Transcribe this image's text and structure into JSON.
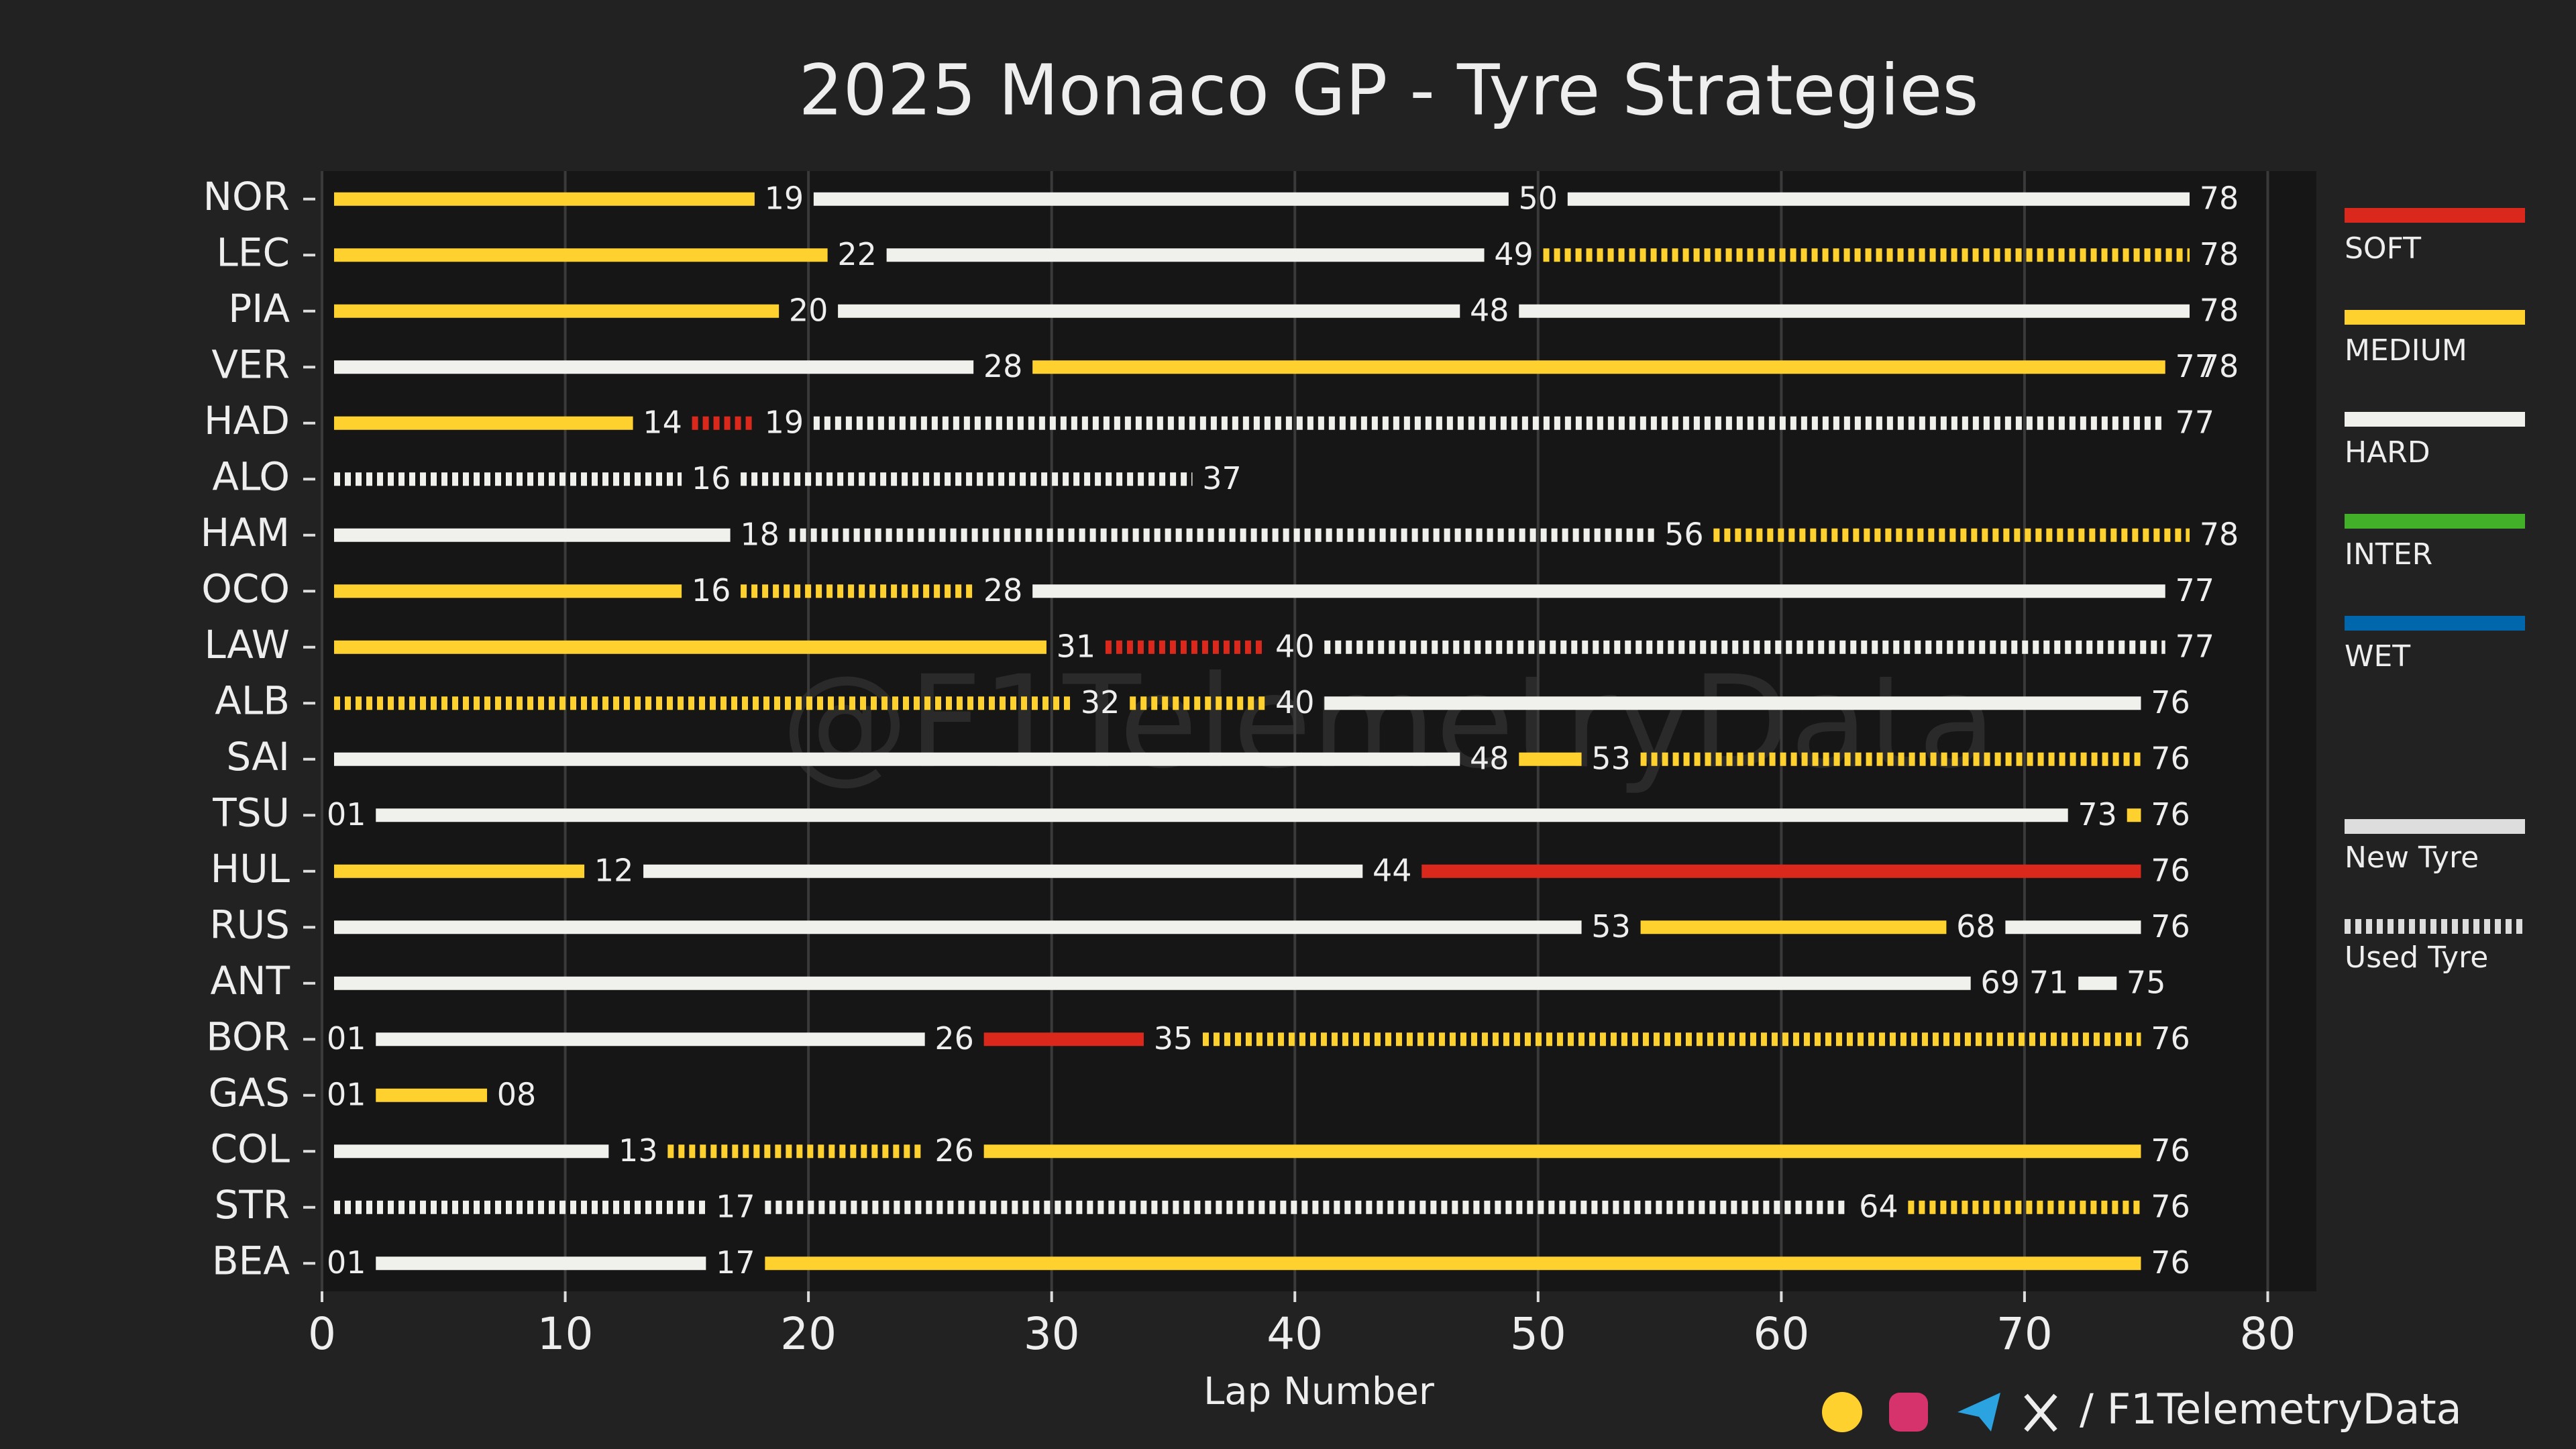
{
  "chart_data": {
    "type": "gantt",
    "title": "2025 Monaco GP - Tyre Strategies",
    "xlabel": "Lap Number",
    "xlim": [
      0,
      82
    ],
    "xticks": [
      0,
      10,
      20,
      30,
      40,
      50,
      60,
      70,
      80
    ],
    "grid": true,
    "watermark": "@F1TelemetryData",
    "footer": "/ F1TelemetryData",
    "compounds": [
      {
        "name": "SOFT",
        "color": "#da291c"
      },
      {
        "name": "MEDIUM",
        "color": "#ffd12e"
      },
      {
        "name": "HARD",
        "color": "#f0f0ec"
      },
      {
        "name": "INTER",
        "color": "#43b02a"
      },
      {
        "name": "WET",
        "color": "#0067ad"
      }
    ],
    "tyre_age": {
      "new": "New Tyre",
      "used": "Used Tyre"
    },
    "drivers": [
      {
        "name": "NOR",
        "stints": [
          {
            "compound": "MEDIUM",
            "new": true,
            "end": 19
          },
          {
            "compound": "HARD",
            "new": true,
            "end": 50
          },
          {
            "compound": "HARD",
            "new": true,
            "end": 78
          }
        ]
      },
      {
        "name": "LEC",
        "stints": [
          {
            "compound": "MEDIUM",
            "new": true,
            "end": 22
          },
          {
            "compound": "HARD",
            "new": true,
            "end": 49
          },
          {
            "compound": "MEDIUM",
            "new": false,
            "end": 78
          }
        ]
      },
      {
        "name": "PIA",
        "stints": [
          {
            "compound": "MEDIUM",
            "new": true,
            "end": 20
          },
          {
            "compound": "HARD",
            "new": true,
            "end": 48
          },
          {
            "compound": "HARD",
            "new": true,
            "end": 78
          }
        ]
      },
      {
        "name": "VER",
        "stints": [
          {
            "compound": "HARD",
            "new": true,
            "end": 28
          },
          {
            "compound": "MEDIUM",
            "new": true,
            "end": 77
          },
          {
            "compound": "HARD",
            "new": true,
            "end": 78
          }
        ]
      },
      {
        "name": "HAD",
        "stints": [
          {
            "compound": "MEDIUM",
            "new": true,
            "end": 14
          },
          {
            "compound": "SOFT",
            "new": false,
            "end": 19
          },
          {
            "compound": "HARD",
            "new": false,
            "end": 77
          }
        ]
      },
      {
        "name": "ALO",
        "stints": [
          {
            "compound": "HARD",
            "new": false,
            "end": 16
          },
          {
            "compound": "HARD",
            "new": false,
            "end": 37
          }
        ]
      },
      {
        "name": "HAM",
        "stints": [
          {
            "compound": "HARD",
            "new": true,
            "end": 18
          },
          {
            "compound": "HARD",
            "new": false,
            "end": 56
          },
          {
            "compound": "MEDIUM",
            "new": false,
            "end": 78
          }
        ]
      },
      {
        "name": "OCO",
        "stints": [
          {
            "compound": "MEDIUM",
            "new": true,
            "end": 16
          },
          {
            "compound": "MEDIUM",
            "new": false,
            "end": 28
          },
          {
            "compound": "HARD",
            "new": true,
            "end": 77
          }
        ]
      },
      {
        "name": "LAW",
        "stints": [
          {
            "compound": "MEDIUM",
            "new": true,
            "end": 31
          },
          {
            "compound": "SOFT",
            "new": false,
            "end": 40
          },
          {
            "compound": "HARD",
            "new": false,
            "end": 77
          }
        ]
      },
      {
        "name": "ALB",
        "stints": [
          {
            "compound": "MEDIUM",
            "new": false,
            "end": 32
          },
          {
            "compound": "MEDIUM",
            "new": false,
            "end": 40
          },
          {
            "compound": "HARD",
            "new": true,
            "end": 76
          }
        ]
      },
      {
        "name": "SAI",
        "stints": [
          {
            "compound": "HARD",
            "new": true,
            "end": 48
          },
          {
            "compound": "MEDIUM",
            "new": true,
            "end": 53
          },
          {
            "compound": "MEDIUM",
            "new": false,
            "end": 76
          }
        ]
      },
      {
        "name": "TSU",
        "stints": [
          {
            "compound": "HARD",
            "new": true,
            "end": {
              "value": 1,
              "label": "01"
            }
          },
          {
            "compound": "HARD",
            "new": true,
            "end": 73
          },
          {
            "compound": "MEDIUM",
            "new": true,
            "end": 76
          }
        ]
      },
      {
        "name": "HUL",
        "stints": [
          {
            "compound": "MEDIUM",
            "new": true,
            "end": 12
          },
          {
            "compound": "HARD",
            "new": true,
            "end": 44
          },
          {
            "compound": "SOFT",
            "new": true,
            "end": 76
          }
        ]
      },
      {
        "name": "RUS",
        "stints": [
          {
            "compound": "HARD",
            "new": true,
            "end": 53
          },
          {
            "compound": "MEDIUM",
            "new": true,
            "end": 68
          },
          {
            "compound": "HARD",
            "new": true,
            "end": 76
          }
        ]
      },
      {
        "name": "ANT",
        "stints": [
          {
            "compound": "HARD",
            "new": true,
            "end": 69
          },
          {
            "compound": "HARD",
            "new": true,
            "end": 71
          },
          {
            "compound": "HARD",
            "new": true,
            "end": 75
          }
        ]
      },
      {
        "name": "BOR",
        "stints": [
          {
            "compound": "HARD",
            "new": true,
            "end": {
              "value": 1,
              "label": "01"
            }
          },
          {
            "compound": "HARD",
            "new": true,
            "end": 26
          },
          {
            "compound": "SOFT",
            "new": true,
            "end": 35
          },
          {
            "compound": "MEDIUM",
            "new": false,
            "end": 76
          }
        ]
      },
      {
        "name": "GAS",
        "stints": [
          {
            "compound": "MEDIUM",
            "new": true,
            "end": {
              "value": 1,
              "label": "01"
            }
          },
          {
            "compound": "MEDIUM",
            "new": true,
            "end": {
              "value": 8,
              "label": "08"
            }
          }
        ]
      },
      {
        "name": "COL",
        "stints": [
          {
            "compound": "HARD",
            "new": true,
            "end": 13
          },
          {
            "compound": "MEDIUM",
            "new": false,
            "end": 26
          },
          {
            "compound": "MEDIUM",
            "new": true,
            "end": 76
          }
        ]
      },
      {
        "name": "STR",
        "stints": [
          {
            "compound": "HARD",
            "new": false,
            "end": 17
          },
          {
            "compound": "HARD",
            "new": false,
            "end": 64
          },
          {
            "compound": "MEDIUM",
            "new": false,
            "end": 76
          }
        ]
      },
      {
        "name": "BEA",
        "stints": [
          {
            "compound": "HARD",
            "new": true,
            "end": {
              "value": 1,
              "label": "01"
            }
          },
          {
            "compound": "HARD",
            "new": true,
            "end": 17
          },
          {
            "compound": "MEDIUM",
            "new": true,
            "end": 76
          }
        ]
      }
    ]
  }
}
